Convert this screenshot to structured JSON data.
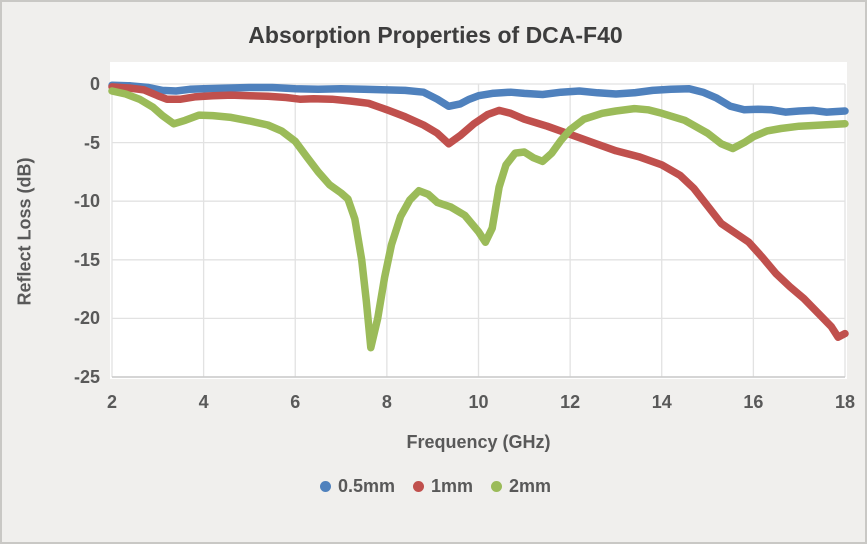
{
  "chart_data": {
    "type": "scatter",
    "title": "Absorption Properties of DCA-F40",
    "xlabel": "Frequency (GHz)",
    "ylabel": "Reflect Loss (dB)",
    "xlim": [
      2,
      18
    ],
    "ylim": [
      -25,
      0
    ],
    "xticks": [
      2,
      4,
      6,
      8,
      10,
      12,
      14,
      16,
      18
    ],
    "yticks": [
      0,
      -5,
      -10,
      -15,
      -20,
      -25
    ],
    "grid": true,
    "legend_position": "bottom-center",
    "plot_bg_color": "#ffffff",
    "figure_bg_color": "#f0efed",
    "gridline_color": "#e2e2e2",
    "axis_text_color": "#595959",
    "title_color": "#3d3d3d",
    "series": [
      {
        "name": "0.5mm",
        "color": "#4F81BD",
        "points": [
          [
            2,
            -0.1
          ],
          [
            2.4,
            -0.15
          ],
          [
            2.8,
            -0.3
          ],
          [
            3.1,
            -0.55
          ],
          [
            3.4,
            -0.6
          ],
          [
            3.7,
            -0.45
          ],
          [
            4,
            -0.4
          ],
          [
            4.5,
            -0.35
          ],
          [
            5,
            -0.3
          ],
          [
            5.5,
            -0.3
          ],
          [
            6,
            -0.4
          ],
          [
            6.5,
            -0.45
          ],
          [
            7,
            -0.4
          ],
          [
            7.5,
            -0.45
          ],
          [
            8,
            -0.5
          ],
          [
            8.4,
            -0.55
          ],
          [
            8.8,
            -0.7
          ],
          [
            9.1,
            -1.3
          ],
          [
            9.35,
            -1.9
          ],
          [
            9.6,
            -1.7
          ],
          [
            9.8,
            -1.3
          ],
          [
            10,
            -1.0
          ],
          [
            10.3,
            -0.8
          ],
          [
            10.7,
            -0.7
          ],
          [
            11,
            -0.8
          ],
          [
            11.4,
            -0.9
          ],
          [
            11.8,
            -0.7
          ],
          [
            12.2,
            -0.6
          ],
          [
            12.6,
            -0.75
          ],
          [
            13,
            -0.85
          ],
          [
            13.4,
            -0.75
          ],
          [
            13.8,
            -0.55
          ],
          [
            14.2,
            -0.45
          ],
          [
            14.6,
            -0.4
          ],
          [
            14.9,
            -0.7
          ],
          [
            15.2,
            -1.2
          ],
          [
            15.5,
            -1.9
          ],
          [
            15.8,
            -2.2
          ],
          [
            16.1,
            -2.15
          ],
          [
            16.4,
            -2.2
          ],
          [
            16.7,
            -2.4
          ],
          [
            17,
            -2.3
          ],
          [
            17.3,
            -2.25
          ],
          [
            17.6,
            -2.4
          ],
          [
            18,
            -2.3
          ]
        ]
      },
      {
        "name": "1mm",
        "color": "#C0504D",
        "points": [
          [
            2,
            -0.25
          ],
          [
            2.4,
            -0.35
          ],
          [
            2.7,
            -0.5
          ],
          [
            3,
            -1.0
          ],
          [
            3.2,
            -1.3
          ],
          [
            3.5,
            -1.3
          ],
          [
            3.8,
            -1.1
          ],
          [
            4.2,
            -1.0
          ],
          [
            4.6,
            -0.95
          ],
          [
            5,
            -1.0
          ],
          [
            5.4,
            -1.05
          ],
          [
            5.8,
            -1.15
          ],
          [
            6.1,
            -1.3
          ],
          [
            6.4,
            -1.25
          ],
          [
            6.8,
            -1.3
          ],
          [
            7.2,
            -1.45
          ],
          [
            7.6,
            -1.65
          ],
          [
            8,
            -2.2
          ],
          [
            8.4,
            -2.8
          ],
          [
            8.8,
            -3.5
          ],
          [
            9.1,
            -4.2
          ],
          [
            9.35,
            -5.1
          ],
          [
            9.6,
            -4.4
          ],
          [
            9.9,
            -3.4
          ],
          [
            10.2,
            -2.6
          ],
          [
            10.45,
            -2.25
          ],
          [
            10.7,
            -2.5
          ],
          [
            11,
            -3.0
          ],
          [
            11.5,
            -3.6
          ],
          [
            12,
            -4.3
          ],
          [
            12.5,
            -5.0
          ],
          [
            13,
            -5.7
          ],
          [
            13.5,
            -6.2
          ],
          [
            14,
            -6.9
          ],
          [
            14.4,
            -7.8
          ],
          [
            14.7,
            -8.9
          ],
          [
            15,
            -10.4
          ],
          [
            15.3,
            -11.9
          ],
          [
            15.6,
            -12.7
          ],
          [
            15.9,
            -13.5
          ],
          [
            16.2,
            -14.8
          ],
          [
            16.5,
            -16.2
          ],
          [
            16.8,
            -17.3
          ],
          [
            17.1,
            -18.3
          ],
          [
            17.4,
            -19.5
          ],
          [
            17.7,
            -20.7
          ],
          [
            17.85,
            -21.6
          ],
          [
            18,
            -21.3
          ]
        ]
      },
      {
        "name": "2mm",
        "color": "#9BBB59",
        "points": [
          [
            2,
            -0.6
          ],
          [
            2.3,
            -0.85
          ],
          [
            2.6,
            -1.3
          ],
          [
            2.9,
            -2.0
          ],
          [
            3.1,
            -2.7
          ],
          [
            3.35,
            -3.4
          ],
          [
            3.6,
            -3.1
          ],
          [
            3.9,
            -2.65
          ],
          [
            4.2,
            -2.7
          ],
          [
            4.6,
            -2.85
          ],
          [
            5,
            -3.15
          ],
          [
            5.4,
            -3.5
          ],
          [
            5.7,
            -4.0
          ],
          [
            6,
            -4.9
          ],
          [
            6.25,
            -6.2
          ],
          [
            6.5,
            -7.5
          ],
          [
            6.75,
            -8.6
          ],
          [
            7,
            -9.3
          ],
          [
            7.15,
            -9.8
          ],
          [
            7.3,
            -11.5
          ],
          [
            7.45,
            -15.0
          ],
          [
            7.55,
            -18.5
          ],
          [
            7.65,
            -22.5
          ],
          [
            7.8,
            -20.0
          ],
          [
            7.95,
            -16.5
          ],
          [
            8.1,
            -13.7
          ],
          [
            8.3,
            -11.3
          ],
          [
            8.5,
            -9.9
          ],
          [
            8.7,
            -9.1
          ],
          [
            8.9,
            -9.4
          ],
          [
            9.1,
            -10.1
          ],
          [
            9.4,
            -10.5
          ],
          [
            9.7,
            -11.2
          ],
          [
            10,
            -12.6
          ],
          [
            10.15,
            -13.5
          ],
          [
            10.3,
            -12.3
          ],
          [
            10.45,
            -8.8
          ],
          [
            10.6,
            -6.9
          ],
          [
            10.8,
            -5.9
          ],
          [
            11,
            -5.8
          ],
          [
            11.2,
            -6.3
          ],
          [
            11.4,
            -6.6
          ],
          [
            11.6,
            -5.9
          ],
          [
            11.8,
            -4.8
          ],
          [
            12,
            -3.9
          ],
          [
            12.3,
            -3.0
          ],
          [
            12.7,
            -2.5
          ],
          [
            13,
            -2.3
          ],
          [
            13.4,
            -2.1
          ],
          [
            13.7,
            -2.2
          ],
          [
            14,
            -2.5
          ],
          [
            14.5,
            -3.1
          ],
          [
            15,
            -4.2
          ],
          [
            15.3,
            -5.1
          ],
          [
            15.55,
            -5.5
          ],
          [
            15.8,
            -5.0
          ],
          [
            16,
            -4.5
          ],
          [
            16.3,
            -4.0
          ],
          [
            16.6,
            -3.8
          ],
          [
            17,
            -3.6
          ],
          [
            17.5,
            -3.5
          ],
          [
            18,
            -3.4
          ]
        ]
      }
    ]
  }
}
